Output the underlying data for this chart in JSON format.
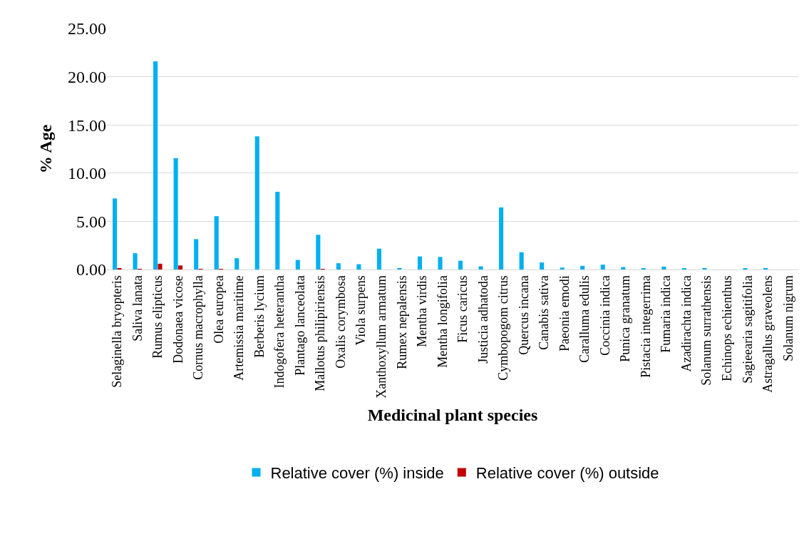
{
  "chart_data": {
    "type": "bar",
    "xlabel": "Medicinal plant species",
    "ylabel": "% Age",
    "categories": [
      "Selaginella bryopteris",
      "Saliva lanata",
      "Rumus elipticus",
      "Dodonaea vicose",
      "Cornus macrophylla",
      "Olea europea",
      "Artemissia maritime",
      "Berberis lycium",
      "Indogofera heterantha",
      "Plantago lanceolata",
      "Mallotus philipiriensis",
      "Oxalis corymbosa",
      "Viola surpens",
      "Xanthoxyllum armatum",
      "Rumex nepalensis",
      "Mentha virdis",
      "Mentha longifolia",
      "Ficus caricus",
      "Justicia adhatoda",
      "Cymbopogom citrus",
      "Quercus incana",
      "Canabis sativa",
      "Paeonia emodi",
      "Caralluma edulis",
      "Coccinia indica",
      "Punica granatum",
      "Pistacia integerrima",
      "Fumaria indica",
      "Azadirachta indica",
      "Solanum surrathensis",
      "Echinops echienthus",
      "Sagieearia sagitifolia",
      "Astragallus graveolens",
      "Solanum nigrum"
    ],
    "series": [
      {
        "name": "Relative cover (%) inside",
        "color": "#00b0f0",
        "values": [
          7.37,
          1.69,
          21.59,
          11.56,
          3.15,
          5.53,
          1.17,
          13.82,
          8.06,
          0.99,
          3.6,
          0.65,
          0.55,
          2.16,
          0.12,
          1.35,
          1.3,
          0.91,
          0.33,
          6.44,
          1.79,
          0.73,
          0.2,
          0.38,
          0.5,
          0.25,
          0.15,
          0.3,
          0.08,
          0.08,
          0,
          0.08,
          0.08,
          0
        ]
      },
      {
        "name": "Relative cover (%) outside",
        "color": "#c00000",
        "values": [
          0.12,
          0.05,
          0.6,
          0.42,
          0.05,
          0.05,
          0,
          0,
          0,
          0,
          0.05,
          0,
          0,
          0,
          0,
          0,
          0,
          0,
          0,
          0,
          0,
          0,
          0,
          0,
          0,
          0,
          0,
          0,
          0,
          0,
          0,
          0,
          0,
          0
        ]
      }
    ],
    "ylim": [
      0,
      25
    ],
    "yticks": [
      {
        "value": 0,
        "label": "0.00"
      },
      {
        "value": 5,
        "label": "5.00"
      },
      {
        "value": 10,
        "label": "10.00"
      },
      {
        "value": 15,
        "label": "15.00"
      },
      {
        "value": 20,
        "label": "20.00"
      },
      {
        "value": 25,
        "label": "25.00"
      }
    ],
    "grid": "y",
    "legend": "bottom"
  }
}
